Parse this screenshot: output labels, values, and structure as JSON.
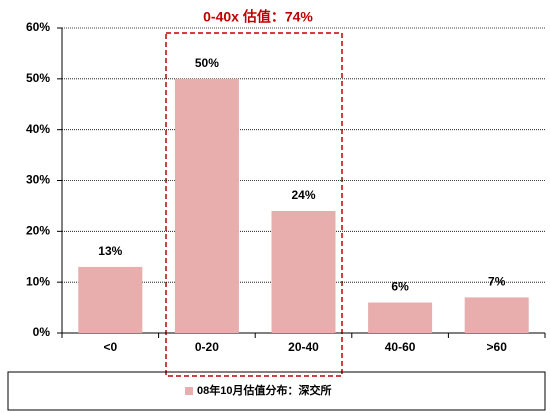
{
  "chart_data": {
    "type": "bar",
    "annotation": "0-40x 估值：74%",
    "categories": [
      "<0",
      "0-20",
      "20-40",
      "40-60",
      ">60"
    ],
    "series": [
      {
        "name": "08年10月估值分布：深交所",
        "color": "#e8adad",
        "values": [
          13,
          50,
          24,
          6,
          7
        ],
        "value_labels": [
          "13%",
          "50%",
          "24%",
          "6%",
          "7%"
        ]
      }
    ],
    "ylim": [
      0,
      60
    ],
    "yticks": [
      {
        "value": 0,
        "label": "0%"
      },
      {
        "value": 10,
        "label": "10%"
      },
      {
        "value": 20,
        "label": "20%"
      },
      {
        "value": 30,
        "label": "30%"
      },
      {
        "value": 40,
        "label": "40%"
      },
      {
        "value": 50,
        "label": "50%"
      },
      {
        "value": 60,
        "label": "60%"
      }
    ],
    "grid": true
  }
}
